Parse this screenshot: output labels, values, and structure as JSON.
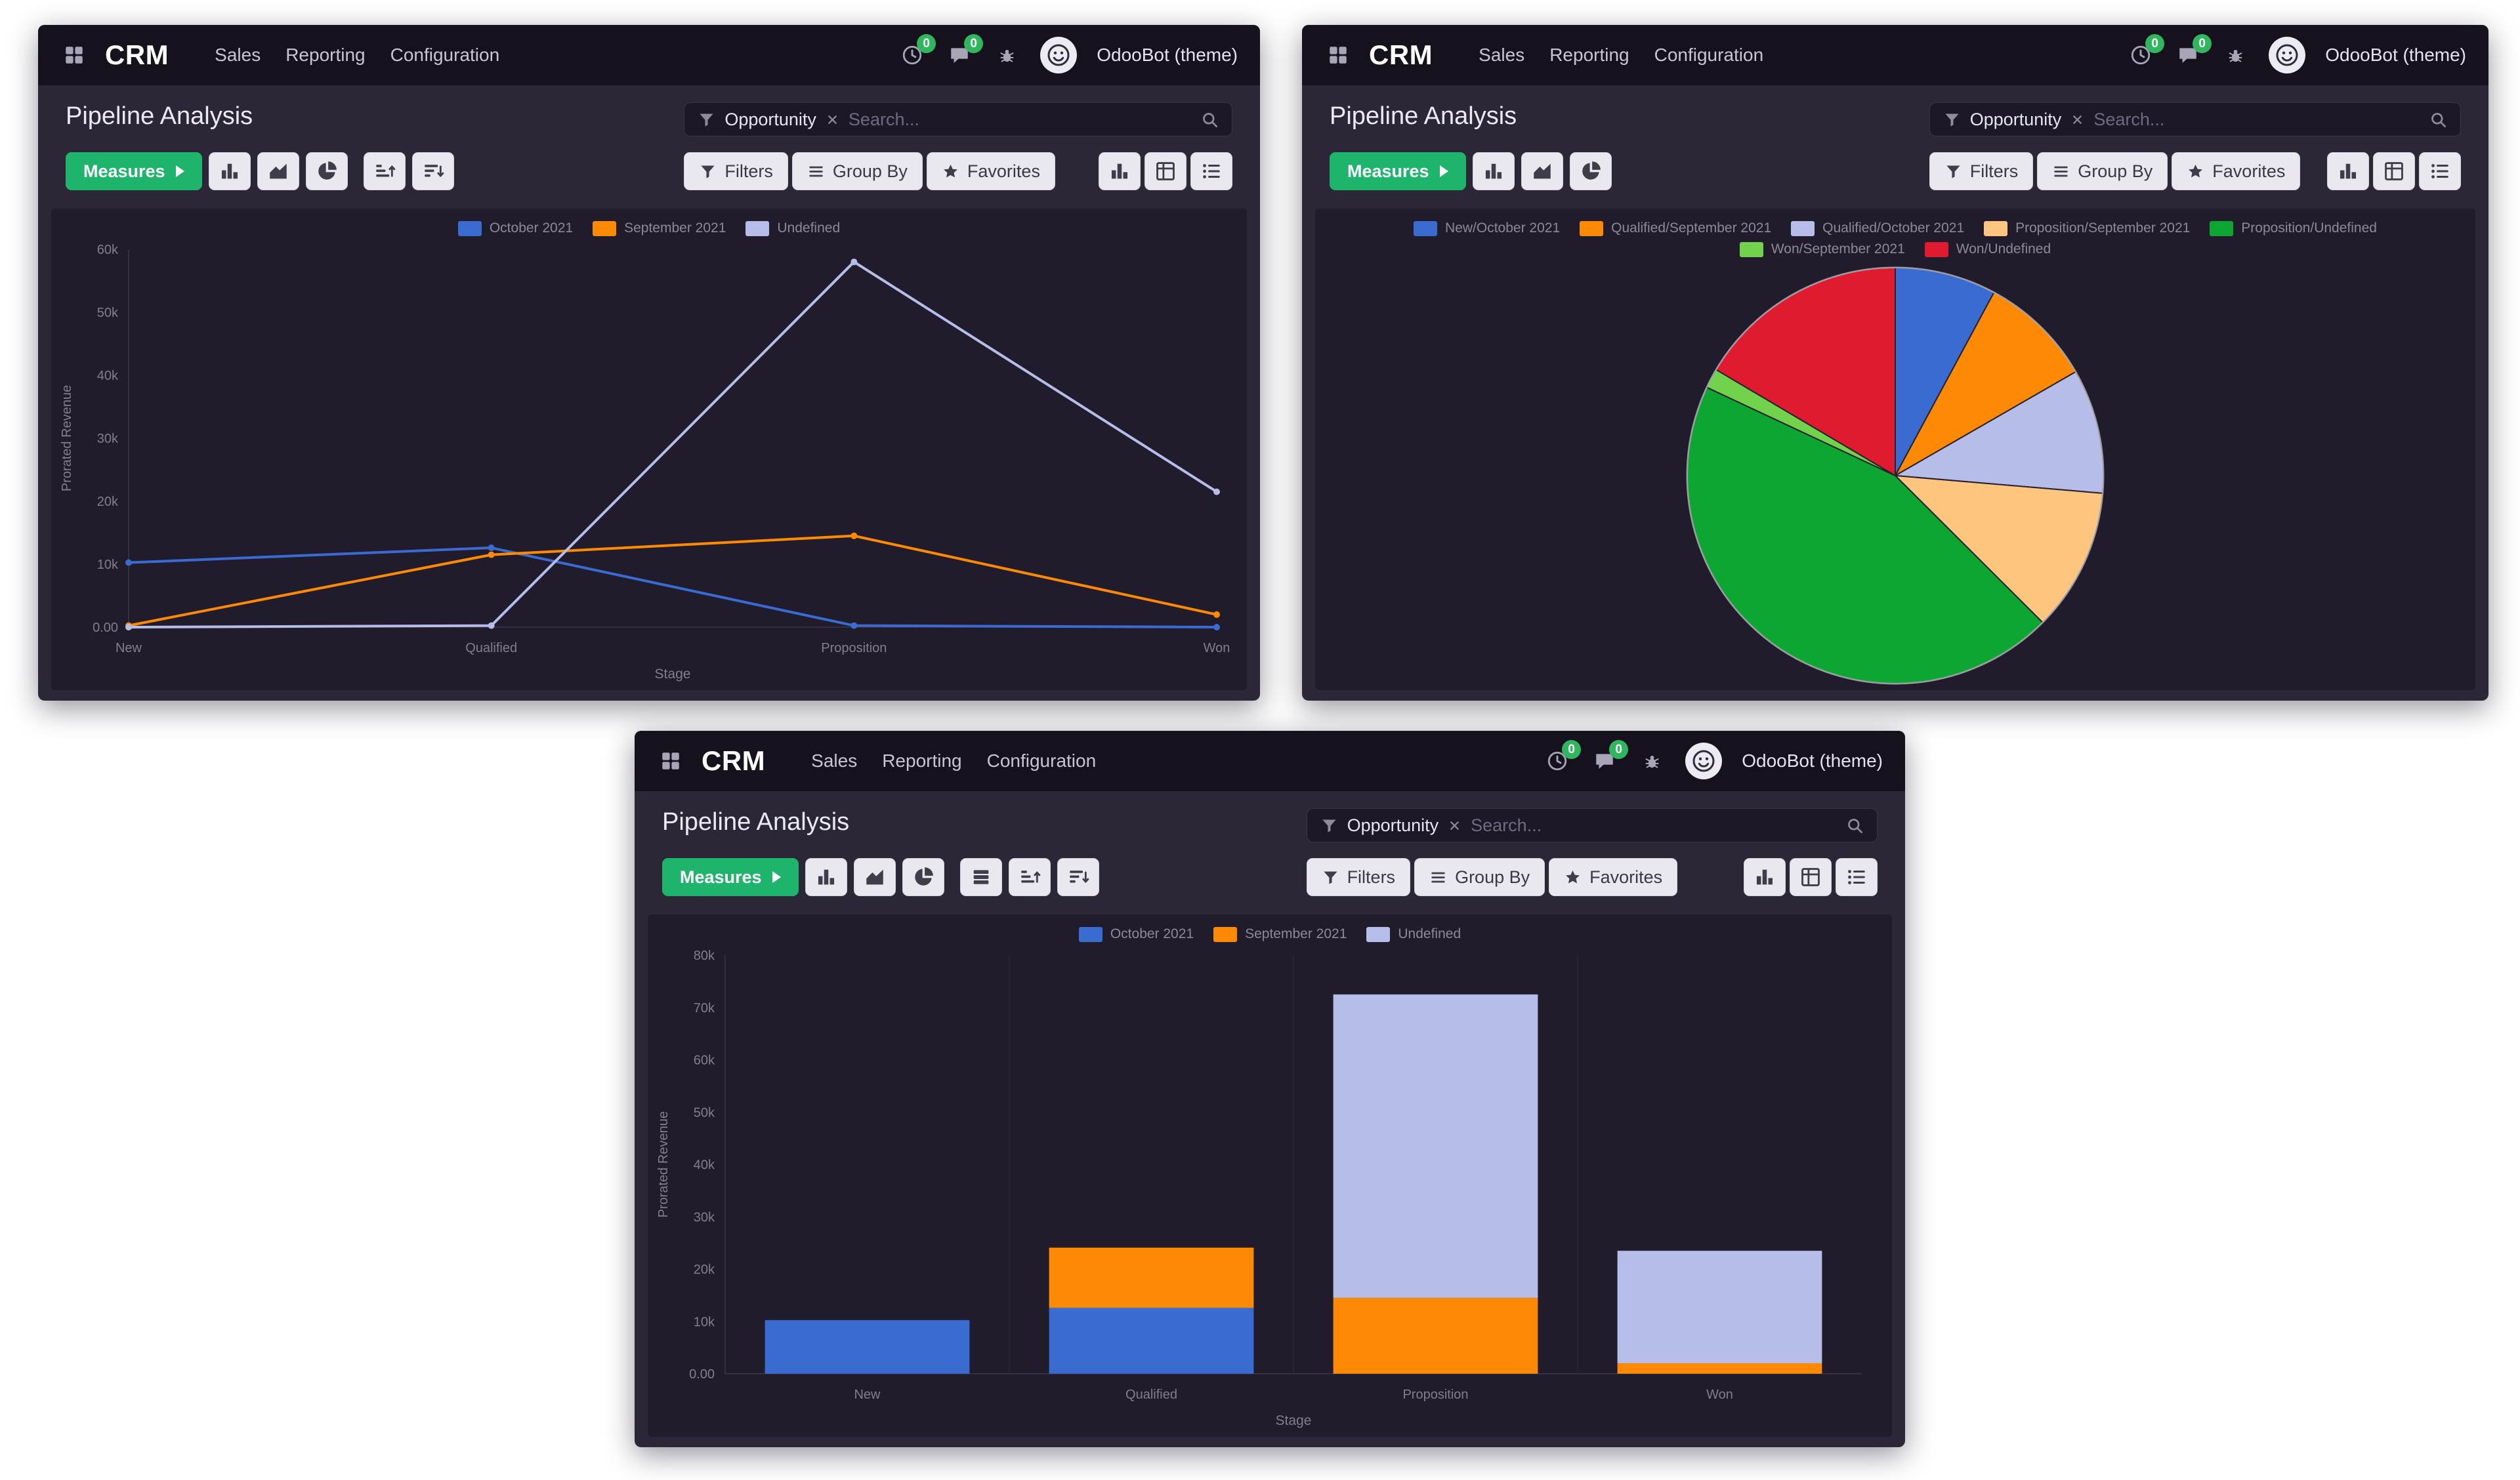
{
  "theme": {
    "navbar_bg": "#15121e",
    "panel_bg": "#2b2737",
    "chart_bg": "#201c2c",
    "accent_green": "#1fb46c",
    "badge_green": "#30b65e",
    "series_blue": "#3a6bd0",
    "series_orange": "#fd8905",
    "series_lavender": "#b6bde9"
  },
  "windows": [
    {
      "nav": {
        "brand": "CRM",
        "menu": [
          "Sales",
          "Reporting",
          "Configuration"
        ],
        "activity_badge": "0",
        "message_badge": "0",
        "user": "OdooBot (theme)"
      },
      "panel": {
        "title": "Pipeline Analysis",
        "facet_label": "Opportunity",
        "search_placeholder": "Search...",
        "measures": "Measures",
        "filters": "Filters",
        "group_by": "Group By",
        "favorites": "Favorites"
      },
      "chart_data": {
        "type": "line",
        "title": "Pipeline Analysis",
        "categories": [
          "New",
          "Qualified",
          "Proposition",
          "Won"
        ],
        "series": [
          {
            "name": "October 2021",
            "color": "#3a6bd0",
            "values": [
              10250,
              12600,
              250,
              0
            ]
          },
          {
            "name": "September 2021",
            "color": "#fd8905",
            "values": [
              250,
              11500,
              14500,
              2000
            ]
          },
          {
            "name": "Undefined",
            "color": "#b6bde9",
            "values": [
              0,
              250,
              58000,
              21500
            ]
          }
        ],
        "xlabel": "Stage",
        "ylabel": "Prorated Revenue",
        "ylim": [
          0,
          60000
        ],
        "ytick_step": 10000,
        "yticks": [
          "0.00",
          "10k",
          "20k",
          "30k",
          "40k",
          "50k",
          "60k"
        ],
        "legend_position": "top",
        "grid": false
      }
    },
    {
      "nav": {
        "brand": "CRM",
        "menu": [
          "Sales",
          "Reporting",
          "Configuration"
        ],
        "activity_badge": "0",
        "message_badge": "0",
        "user": "OdooBot (theme)"
      },
      "panel": {
        "title": "Pipeline Analysis",
        "facet_label": "Opportunity",
        "search_placeholder": "Search...",
        "measures": "Measures",
        "filters": "Filters",
        "group_by": "Group By",
        "favorites": "Favorites"
      },
      "chart_data": {
        "type": "pie",
        "title": "Pipeline Analysis",
        "labels": [
          "New/October 2021",
          "Qualified/September 2021",
          "Qualified/October 2021",
          "Proposition/September 2021",
          "Proposition/Undefined",
          "Won/September 2021",
          "Won/Undefined"
        ],
        "values": [
          10250,
          11500,
          12600,
          14500,
          58000,
          2000,
          21500
        ],
        "colors": [
          "#3a6bd0",
          "#fd8905",
          "#b6bde9",
          "#fec57e",
          "#0da633",
          "#72d24b",
          "#e01b2f"
        ],
        "legend_position": "top"
      }
    },
    {
      "nav": {
        "brand": "CRM",
        "menu": [
          "Sales",
          "Reporting",
          "Configuration"
        ],
        "activity_badge": "0",
        "message_badge": "0",
        "user": "OdooBot (theme)"
      },
      "panel": {
        "title": "Pipeline Analysis",
        "facet_label": "Opportunity",
        "search_placeholder": "Search...",
        "measures": "Measures",
        "filters": "Filters",
        "group_by": "Group By",
        "favorites": "Favorites"
      },
      "chart_data": {
        "type": "bar",
        "stacked": true,
        "title": "Pipeline Analysis",
        "categories": [
          "New",
          "Qualified",
          "Proposition",
          "Won"
        ],
        "series": [
          {
            "name": "October 2021",
            "color": "#3a6bd0",
            "values": [
              10250,
              12600,
              0,
              0
            ]
          },
          {
            "name": "September 2021",
            "color": "#fd8905",
            "values": [
              0,
              11500,
              14500,
              2000
            ]
          },
          {
            "name": "Undefined",
            "color": "#b6bde9",
            "values": [
              0,
              0,
              58000,
              21500
            ]
          }
        ],
        "xlabel": "Stage",
        "ylabel": "Prorated Revenue",
        "ylim": [
          0,
          80000
        ],
        "ytick_step": 10000,
        "yticks": [
          "0.00",
          "10k",
          "20k",
          "30k",
          "40k",
          "50k",
          "60k",
          "70k",
          "80k"
        ],
        "legend_position": "top",
        "grid": false
      }
    }
  ]
}
